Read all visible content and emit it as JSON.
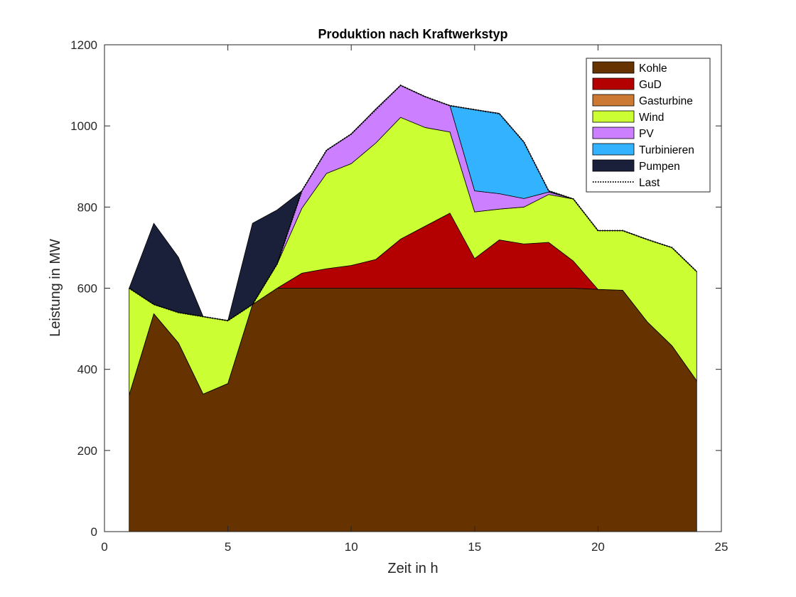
{
  "chart_data": {
    "type": "area",
    "title": "Produktion nach Kraftwerkstyp",
    "xlabel": "Zeit in h",
    "ylabel": "Leistung in MW",
    "xlim": [
      0,
      25
    ],
    "ylim": [
      0,
      1200
    ],
    "xticks": [
      0,
      5,
      10,
      15,
      20,
      25
    ],
    "yticks": [
      0,
      200,
      400,
      600,
      800,
      1000,
      1200
    ],
    "grid": false,
    "legend_position": "top-right",
    "x": [
      1,
      2,
      3,
      4,
      5,
      6,
      7,
      8,
      9,
      10,
      11,
      12,
      13,
      14,
      15,
      16,
      17,
      18,
      19,
      20,
      21,
      22,
      23,
      24
    ],
    "series": [
      {
        "name": "Kohle",
        "color": "#663300",
        "values": [
          337,
          537,
          465,
          339,
          365,
          560,
          600,
          600,
          600,
          600,
          600,
          600,
          600,
          600,
          600,
          600,
          600,
          600,
          600,
          597,
          595,
          517,
          458,
          372
        ]
      },
      {
        "name": "GuD",
        "color": "#b30000",
        "values": [
          0,
          0,
          0,
          0,
          0,
          0,
          0,
          37,
          48,
          56,
          71,
          121,
          153,
          185,
          73,
          119,
          109,
          113,
          67,
          0,
          0,
          0,
          0,
          0
        ]
      },
      {
        "name": "Gasturbine",
        "color": "#cc7a33",
        "values": [
          0,
          0,
          0,
          0,
          0,
          0,
          0,
          0,
          0,
          0,
          0,
          0,
          0,
          0,
          0,
          0,
          0,
          0,
          0,
          0,
          0,
          0,
          0,
          0
        ]
      },
      {
        "name": "Wind",
        "color": "#ccff33",
        "values": [
          263,
          23,
          75,
          191,
          155,
          0,
          60,
          160,
          235,
          251,
          287,
          300,
          243,
          200,
          115,
          76,
          91,
          118,
          153,
          145,
          147,
          203,
          242,
          269
        ]
      },
      {
        "name": "PV",
        "color": "#cc80ff",
        "values": [
          0,
          0,
          0,
          0,
          0,
          0,
          0,
          43,
          57,
          73,
          84,
          79,
          76,
          65,
          52,
          38,
          21,
          6,
          0,
          0,
          0,
          0,
          0,
          0
        ]
      },
      {
        "name": "Turbinieren",
        "color": "#33b3ff",
        "values": [
          0,
          0,
          0,
          0,
          0,
          0,
          0,
          0,
          0,
          0,
          0,
          0,
          0,
          0,
          200,
          198,
          139,
          3,
          0,
          0,
          0,
          0,
          0,
          0
        ]
      },
      {
        "name": "Pumpen",
        "color": "#1a1f3a",
        "values": [
          0,
          200,
          136,
          0,
          0,
          200,
          133,
          0,
          0,
          0,
          0,
          0,
          0,
          0,
          0,
          0,
          0,
          0,
          0,
          0,
          0,
          0,
          0,
          0
        ]
      }
    ],
    "load": {
      "name": "Last",
      "values": [
        600,
        560,
        540,
        530,
        520,
        560,
        660,
        840,
        940,
        980,
        1040,
        1100,
        1072,
        1050,
        1040,
        1030,
        960,
        840,
        820,
        742,
        742,
        720,
        700,
        641
      ]
    }
  }
}
